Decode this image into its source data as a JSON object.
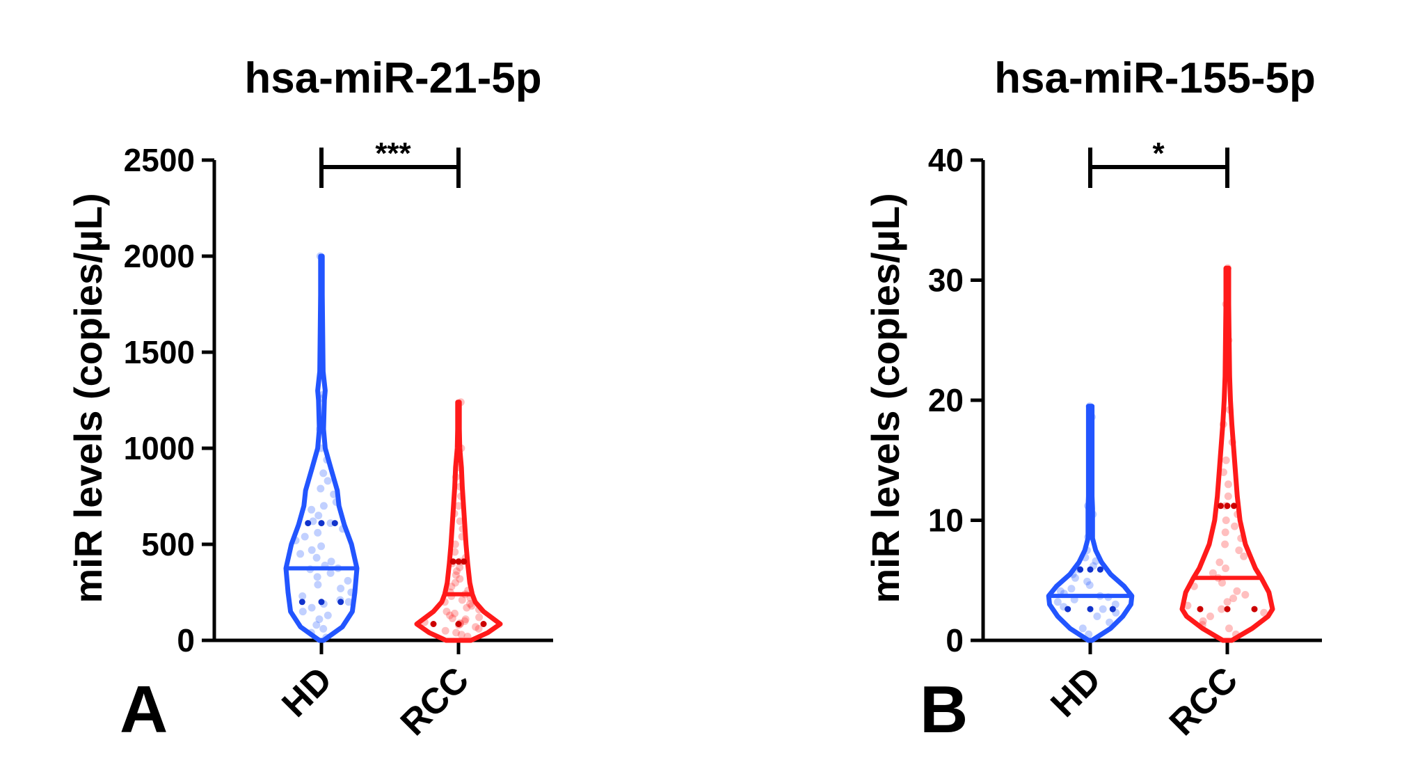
{
  "chart_data": [
    {
      "type": "violin",
      "panel_label": "A",
      "title": "hsa-miR-21-5p",
      "ylabel": "miR levels (copies/µL)",
      "xlabel": "",
      "categories": [
        "HD",
        "RCC"
      ],
      "ylim": [
        0,
        2500
      ],
      "yticks": [
        0,
        500,
        1000,
        1500,
        2000,
        2500
      ],
      "significance": "***",
      "grid": false,
      "series": [
        {
          "category": "HD",
          "color": "#2255ff",
          "min": 0,
          "max": 2000,
          "median": 375,
          "q1": 200,
          "q3": 610,
          "density": [
            [
              0,
              0.05
            ],
            [
              70,
              0.5
            ],
            [
              150,
              0.74
            ],
            [
              250,
              0.8
            ],
            [
              375,
              0.85
            ],
            [
              500,
              0.72
            ],
            [
              600,
              0.55
            ],
            [
              700,
              0.42
            ],
            [
              780,
              0.38
            ],
            [
              900,
              0.22
            ],
            [
              1000,
              0.09
            ],
            [
              1100,
              0.05
            ],
            [
              1250,
              0.07
            ],
            [
              1300,
              0.09
            ],
            [
              1400,
              0.04
            ],
            [
              1600,
              0.03
            ],
            [
              1800,
              0.02
            ],
            [
              2000,
              0.02
            ]
          ],
          "points": [
            15,
            40,
            60,
            80,
            110,
            130,
            150,
            170,
            190,
            200,
            210,
            230,
            250,
            270,
            290,
            310,
            330,
            350,
            370,
            375,
            390,
            410,
            430,
            450,
            470,
            490,
            520,
            540,
            560,
            580,
            610,
            620,
            650,
            680,
            700,
            720,
            760,
            790,
            830,
            870,
            940,
            1000,
            1100,
            1260,
            1280,
            2000
          ]
        },
        {
          "category": "RCC",
          "color": "#ff1a1a",
          "min": 0,
          "max": 1240,
          "median": 240,
          "q1": 85,
          "q3": 410,
          "density": [
            [
              0,
              0.3
            ],
            [
              40,
              0.7
            ],
            [
              85,
              1.0
            ],
            [
              150,
              0.6
            ],
            [
              200,
              0.4
            ],
            [
              240,
              0.33
            ],
            [
              300,
              0.27
            ],
            [
              400,
              0.22
            ],
            [
              500,
              0.18
            ],
            [
              600,
              0.15
            ],
            [
              700,
              0.12
            ],
            [
              800,
              0.09
            ],
            [
              900,
              0.07
            ],
            [
              1000,
              0.03
            ],
            [
              1100,
              0.02
            ],
            [
              1240,
              0.02
            ]
          ],
          "points": [
            20,
            30,
            40,
            50,
            60,
            70,
            80,
            85,
            90,
            95,
            100,
            110,
            115,
            120,
            130,
            140,
            150,
            160,
            170,
            180,
            190,
            200,
            210,
            220,
            230,
            240,
            250,
            260,
            280,
            300,
            320,
            340,
            360,
            380,
            400,
            410,
            430,
            460,
            500,
            540,
            580,
            620,
            660,
            700,
            750,
            800,
            850,
            900,
            1000,
            1240
          ]
        }
      ]
    },
    {
      "type": "violin",
      "panel_label": "B",
      "title": "hsa-miR-155-5p",
      "ylabel": "miR levels (copies/µL)",
      "xlabel": "",
      "categories": [
        "HD",
        "RCC"
      ],
      "ylim": [
        0,
        40
      ],
      "yticks": [
        0,
        10,
        20,
        30,
        40
      ],
      "significance": "*",
      "grid": false,
      "series": [
        {
          "category": "HD",
          "color": "#2255ff",
          "min": 0,
          "max": 19.5,
          "median": 3.7,
          "q1": 2.6,
          "q3": 5.9,
          "density": [
            [
              0,
              0.04
            ],
            [
              1,
              0.45
            ],
            [
              2,
              0.72
            ],
            [
              3,
              0.9
            ],
            [
              3.7,
              0.92
            ],
            [
              4.5,
              0.75
            ],
            [
              5.5,
              0.45
            ],
            [
              6.5,
              0.25
            ],
            [
              7.5,
              0.12
            ],
            [
              8.5,
              0.05
            ],
            [
              10,
              0.05
            ],
            [
              11,
              0.05
            ],
            [
              12,
              0.04
            ],
            [
              14,
              0.04
            ],
            [
              16,
              0.04
            ],
            [
              18,
              0.04
            ],
            [
              19.5,
              0.04
            ]
          ],
          "points": [
            0.5,
            1,
            1.5,
            2,
            2.3,
            2.6,
            2.8,
            3,
            3.2,
            3.4,
            3.6,
            3.7,
            3.9,
            4.1,
            4.3,
            4.6,
            4.9,
            5.2,
            5.5,
            5.9,
            6.2,
            6.6,
            6.9,
            7.5,
            8.6,
            10.5,
            11.2,
            18.6,
            19.5
          ]
        },
        {
          "category": "RCC",
          "color": "#ff1a1a",
          "min": 0,
          "max": 31,
          "median": 5.2,
          "q1": 2.6,
          "q3": 11.2,
          "density": [
            [
              0,
              0.1
            ],
            [
              1,
              0.55
            ],
            [
              2,
              0.9
            ],
            [
              2.6,
              1.0
            ],
            [
              4,
              0.92
            ],
            [
              5.2,
              0.75
            ],
            [
              6,
              0.62
            ],
            [
              8,
              0.4
            ],
            [
              10,
              0.28
            ],
            [
              12,
              0.22
            ],
            [
              14,
              0.18
            ],
            [
              16,
              0.14
            ],
            [
              18,
              0.1
            ],
            [
              20,
              0.07
            ],
            [
              22,
              0.05
            ],
            [
              25,
              0.04
            ],
            [
              28,
              0.03
            ],
            [
              31,
              0.03
            ]
          ],
          "points": [
            0.5,
            1,
            1.3,
            1.6,
            2,
            2.3,
            2.6,
            2.9,
            3.2,
            3.5,
            3.8,
            4.1,
            4.5,
            4.8,
            5.2,
            5.6,
            6,
            6.5,
            7,
            7.5,
            8,
            8.5,
            9,
            9.5,
            10,
            10.5,
            11.2,
            12,
            13,
            14,
            15,
            16.5,
            18,
            19.2,
            22,
            25,
            28,
            31
          ]
        }
      ]
    }
  ]
}
